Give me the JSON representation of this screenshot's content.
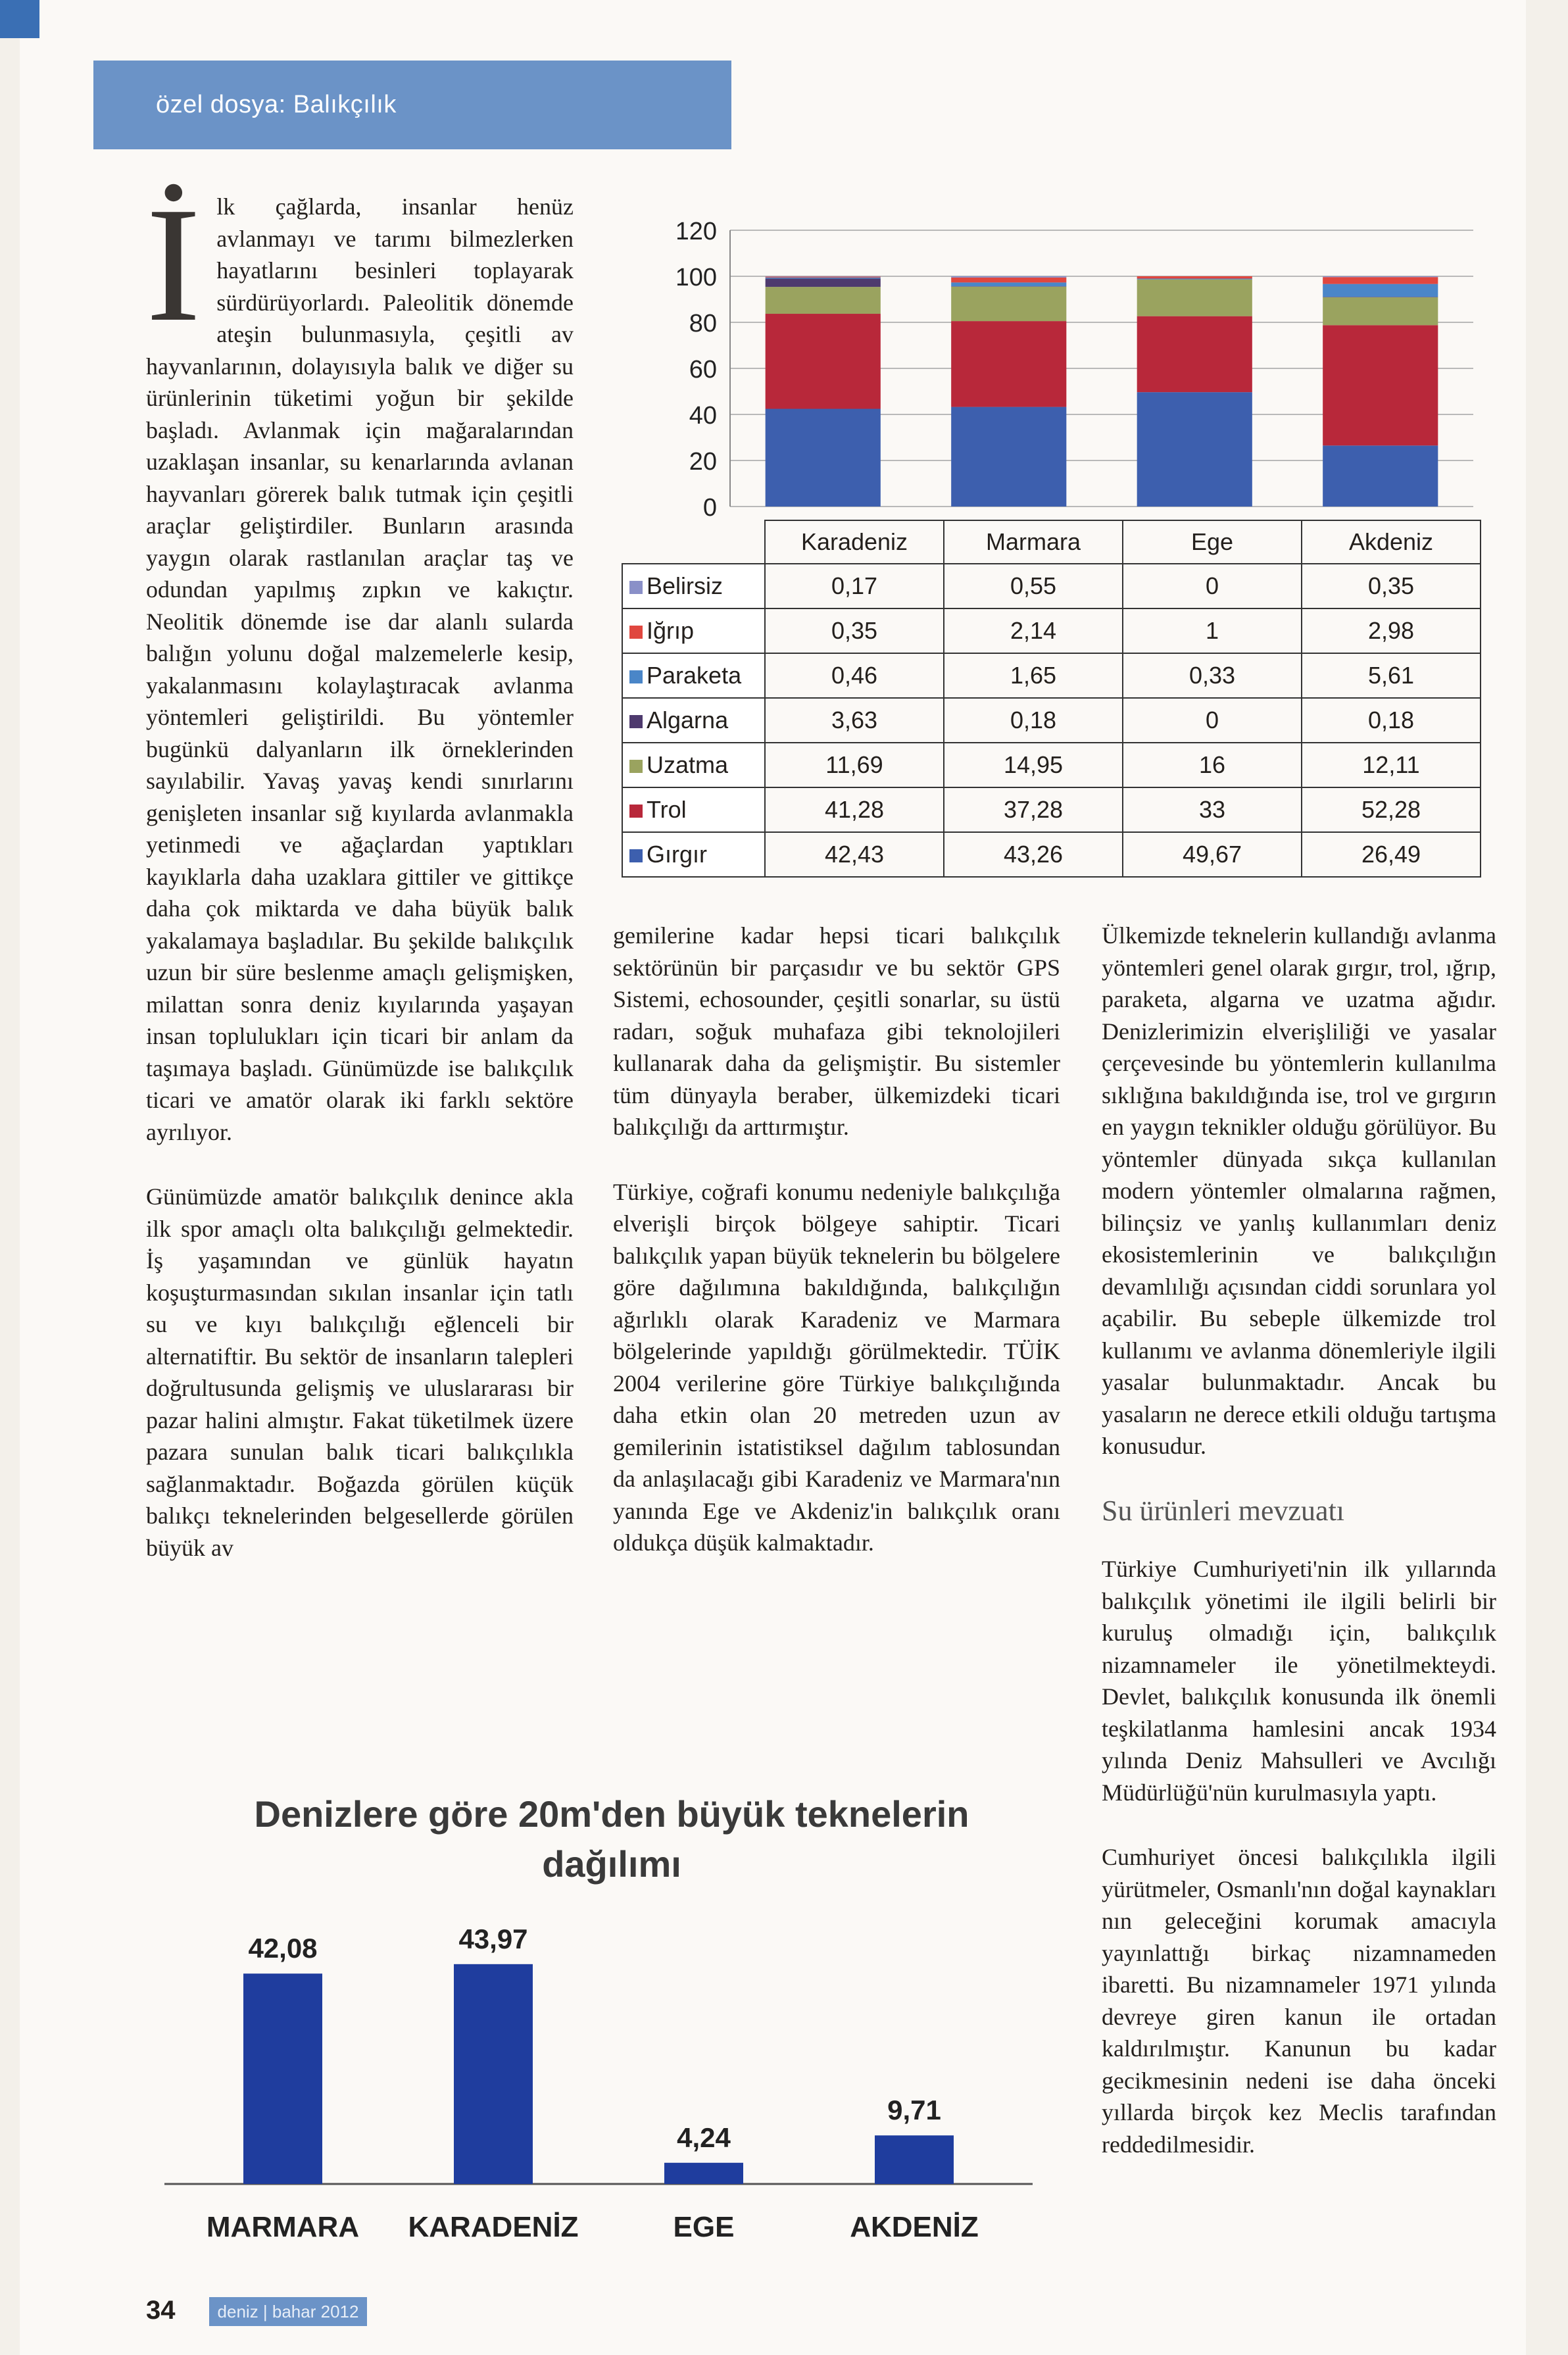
{
  "header": {
    "section": "özel dosya: Balıkçılık"
  },
  "footer": {
    "page_number": "34",
    "issue": "deniz | bahar 2012"
  },
  "article": {
    "dropcap": "İ",
    "col1_p1": "lk çağlarda, insanlar henüz avlanmayı ve tarımı bilmezlerken hayatlarını besinleri toplayarak sürdürüyorlardı. Paleolitik dönemde ateşin bulunmasıyla, çeşitli av hayvanlarının, dolayısıyla balık ve diğer su ürünlerinin tüketimi yoğun bir şekilde başladı. Avlanmak için mağaralarından uzaklaşan insanlar, su kenarlarında avlanan hayvanları görerek balık tutmak için çeşitli araçlar geliştirdiler. Bunların arasında yaygın olarak rastlanılan araçlar taş ve odundan yapılmış zıpkın ve kakıçtır. Neolitik dönemde ise dar alanlı sularda balığın yolunu doğal malzemelerle kesip, yakalanmasını kolaylaştıracak avlanma yöntemleri geliştirildi. Bu yöntemler bugünkü dalyanların ilk örneklerinden sayılabilir. Yavaş yavaş kendi sınırlarını genişleten insanlar sığ kıyılarda avlanmakla yetinmedi ve ağaçlardan yaptıkları kayıklarla daha uzaklara gittiler ve gittikçe daha çok miktarda ve daha büyük balık yakalamaya başladılar. Bu şekilde balıkçılık uzun bir süre beslenme amaçlı gelişmişken, milattan sonra deniz kıyılarında yaşayan insan toplulukları için ticari bir anlam da taşımaya başladı. Günümüzde ise balıkçılık ticari ve amatör olarak iki farklı sektöre ayrılıyor.",
    "col1_p2": "Günümüzde amatör balıkçılık denince akla ilk spor amaçlı olta balıkçılığı gelmektedir. İş yaşamından ve günlük hayatın koşuşturmasından sıkılan insanlar için tatlı su ve kıyı balıkçılığı eğlenceli bir alternatiftir. Bu sektör de insanların talepleri doğrultusunda gelişmiş ve uluslararası bir pazar halini almıştır. Fakat tüketilmek üzere pazara sunulan balık ticari balıkçılıkla sağlanmaktadır. Boğazda görülen küçük balıkçı teknelerinden belgesellerde görülen büyük av",
    "col2_p1": "gemilerine kadar hepsi ticari balıkçılık sektörünün bir parçasıdır ve bu sektör GPS Sistemi, echosounder, çeşitli sonarlar, su üstü radarı, soğuk muhafaza gibi teknolojileri kullanarak daha da gelişmiştir. Bu sistemler tüm dünyayla beraber, ülkemizdeki ticari balıkçılığı da arttırmıştır.",
    "col2_p2": "Türkiye, coğrafi konumu nedeniyle balıkçılığa elverişli birçok bölgeye sahiptir. Ticari balıkçılık yapan büyük teknelerin bu bölgelere göre dağılımına bakıldığında, balıkçılığın ağırlıklı olarak Karadeniz ve Marmara bölgelerinde yapıldığı görülmektedir. TÜİK 2004 verilerine göre Türkiye balıkçılığında daha etkin olan 20 metreden uzun av gemilerinin istatistiksel dağılım tablosundan da anlaşılacağı gibi Karadeniz ve Marmara'nın yanında Ege ve Akdeniz'in balıkçılık oranı oldukça düşük kalmaktadır.",
    "col3_p1": "Ülkemizde teknelerin kullandığı avlanma yöntemleri genel olarak gırgır, trol, ığrıp, paraketa, algarna ve uzatma ağıdır. Denizlerimizin elverişliliği ve yasalar çerçevesinde bu yöntemlerin kullanılma sıklığına bakıldığında ise, trol ve gırgırın en yaygın teknikler olduğu görülüyor. Bu yöntemler dünyada sıkça kullanılan modern yöntemler olmalarına rağmen, bilinçsiz ve yanlış kullanımları deniz ekosistemlerinin ve balıkçılığın devamlılığı açısından ciddi sorunlara yol açabilir. Bu sebeple ülkemizde trol kullanımı ve avlanma dönemleriyle ilgili yasalar bulunmaktadır. Ancak bu yasaların ne derece etkili olduğu tartışma konusudur.",
    "subhead": "Su ürünleri mevzuatı",
    "col3_p2": "Türkiye Cumhuriyeti'nin ilk yıllarında balıkçılık yönetimi ile ilgili belirli bir kuruluş olmadığı için, balıkçılık nizamnameler ile yönetilmekteydi. Devlet, balıkçılık konusunda ilk önemli teşkilatlanma hamlesini ancak 1934 yılında Deniz Mahsulleri ve Avcılığı Müdürlüğü'nün kurulmasıyla yaptı.",
    "col3_p3": "Cumhuriyet öncesi balıkçılıkla ilgili yürütmeler, Osmanlı'nın doğal kaynakları nın geleceğini korumak amacıyla yayınlattığı birkaç nizamnameden ibaretti. Bu nizamnameler 1971 yılında devreye giren kanun ile ortadan kaldırılmıştır. Kanunun bu kadar gecikmesinin nedeni ise daha önceki yıllarda birçok kez Meclis tarafından reddedilmesidir."
  },
  "chart_data": [
    {
      "type": "bar",
      "stacked": true,
      "categories": [
        "Karadeniz",
        "Marmara",
        "Ege",
        "Akdeniz"
      ],
      "ylim": [
        0,
        120
      ],
      "yticks": [
        0,
        20,
        40,
        60,
        80,
        100,
        120
      ],
      "grid": true,
      "legend": "table",
      "series": [
        {
          "name": "Belirsiz",
          "values": [
            0.17,
            0.55,
            0,
            0.35
          ],
          "labels": [
            "0,17",
            "0,55",
            "0",
            "0,35"
          ],
          "color": "#8a90c8"
        },
        {
          "name": "Iğrıp",
          "values": [
            0.35,
            2.14,
            1,
            2.98
          ],
          "labels": [
            "0,35",
            "2,14",
            "1",
            "2,98"
          ],
          "color": "#e0473f"
        },
        {
          "name": "Paraketa",
          "values": [
            0.46,
            1.65,
            0.33,
            5.61
          ],
          "labels": [
            "0,46",
            "1,65",
            "0,33",
            "5,61"
          ],
          "color": "#4a86c8"
        },
        {
          "name": "Algarna",
          "values": [
            3.63,
            0.18,
            0,
            0.18
          ],
          "labels": [
            "3,63",
            "0,18",
            "0",
            "0,18"
          ],
          "color": "#4e3a6e"
        },
        {
          "name": "Uzatma",
          "values": [
            11.69,
            14.95,
            16,
            12.11
          ],
          "labels": [
            "11,69",
            "14,95",
            "16",
            "12,11"
          ],
          "color": "#9aa35f"
        },
        {
          "name": "Trol",
          "values": [
            41.28,
            37.28,
            33,
            52.28
          ],
          "labels": [
            "41,28",
            "37,28",
            "33",
            "52,28"
          ],
          "color": "#b8283a"
        },
        {
          "name": "Gırgır",
          "values": [
            42.43,
            43.26,
            49.67,
            26.49
          ],
          "labels": [
            "42,43",
            "43,26",
            "49,67",
            "26,49"
          ],
          "color": "#3d5fae"
        }
      ]
    },
    {
      "type": "bar",
      "title": "Denizlere göre 20m'den büyük teknelerin dağılımı",
      "categories": [
        "MARMARA",
        "KARADENİZ",
        "EGE",
        "AKDENİZ"
      ],
      "values": [
        42.08,
        43.97,
        4.24,
        9.71
      ],
      "value_labels": [
        "42,08",
        "43,97",
        "4,24",
        "9,71"
      ],
      "color": "#1f3d9e",
      "ylim": [
        0,
        50
      ],
      "grid": false
    }
  ]
}
